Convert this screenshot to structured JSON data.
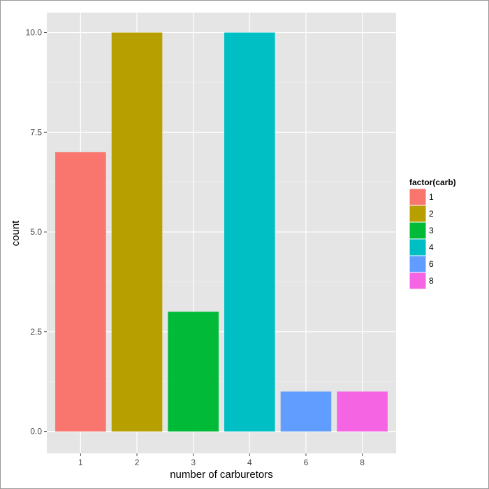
{
  "chart_data": {
    "type": "bar",
    "categories": [
      "1",
      "2",
      "3",
      "4",
      "6",
      "8"
    ],
    "values": [
      7,
      10,
      3,
      10,
      1,
      1
    ],
    "colors": [
      "#F8766D",
      "#B79F00",
      "#00BA38",
      "#00BFC4",
      "#619CFF",
      "#F564E3"
    ],
    "xlabel": "number of carburetors",
    "ylabel": "count",
    "ylim": [
      -0.55,
      10.5
    ],
    "yticks": [
      0,
      2.5,
      5,
      7.5,
      10
    ],
    "ytick_labels": [
      "0.0",
      "2.5",
      "5.0",
      "7.5",
      "10.0"
    ],
    "grid": true,
    "panel_background": "#E5E5E5",
    "grid_color": "#FFFFFF",
    "legend": {
      "title": "factor(carb)",
      "position": "right",
      "items": [
        "1",
        "2",
        "3",
        "4",
        "6",
        "8"
      ]
    }
  }
}
